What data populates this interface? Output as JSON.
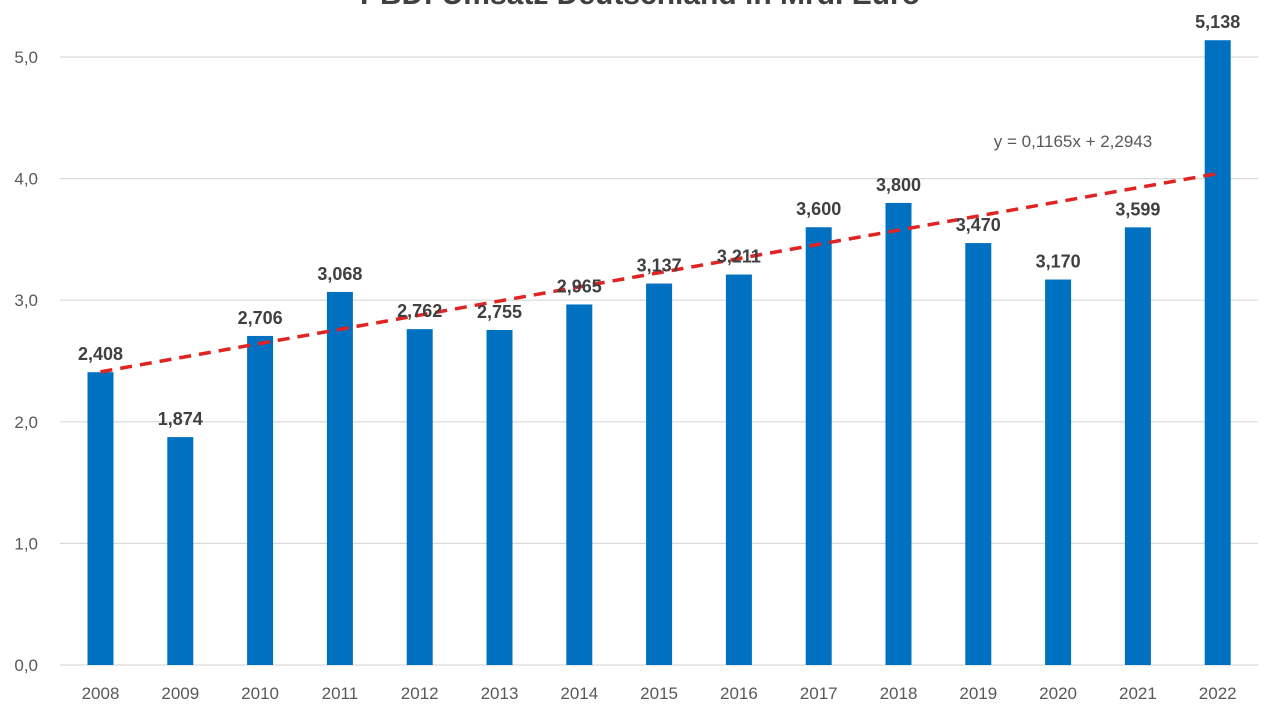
{
  "chart_data": {
    "type": "bar",
    "title": "PBD: Umsatz Deutschland in Mrd. Euro",
    "categories": [
      "2008",
      "2009",
      "2010",
      "2011",
      "2012",
      "2013",
      "2014",
      "2015",
      "2016",
      "2017",
      "2018",
      "2019",
      "2020",
      "2021",
      "2022"
    ],
    "values": [
      2.408,
      1.874,
      2.706,
      3.068,
      2.762,
      2.755,
      2.965,
      3.137,
      3.211,
      3.6,
      3.8,
      3.47,
      3.17,
      3.599,
      5.138
    ],
    "value_labels": [
      "2,408",
      "1,874",
      "2,706",
      "3,068",
      "2,762",
      "2,755",
      "2,965",
      "3,137",
      "3,211",
      "3,600",
      "3,800",
      "3,470",
      "3,170",
      "3,599",
      "5,138"
    ],
    "ylim": [
      0,
      5.0
    ],
    "yticks": [
      0,
      1,
      2,
      3,
      4,
      5
    ],
    "ytick_labels": [
      "0,0",
      "1,0",
      "2,0",
      "3,0",
      "4,0",
      "5,0"
    ],
    "xlabel": "",
    "ylabel": "",
    "grid": true,
    "bar_color": "#0070c0",
    "trendline": {
      "type": "linear",
      "slope": 0.1165,
      "intercept": 2.2943,
      "equation_label": "y = 0,1165x + 2,2943",
      "color": "#e02424"
    }
  }
}
